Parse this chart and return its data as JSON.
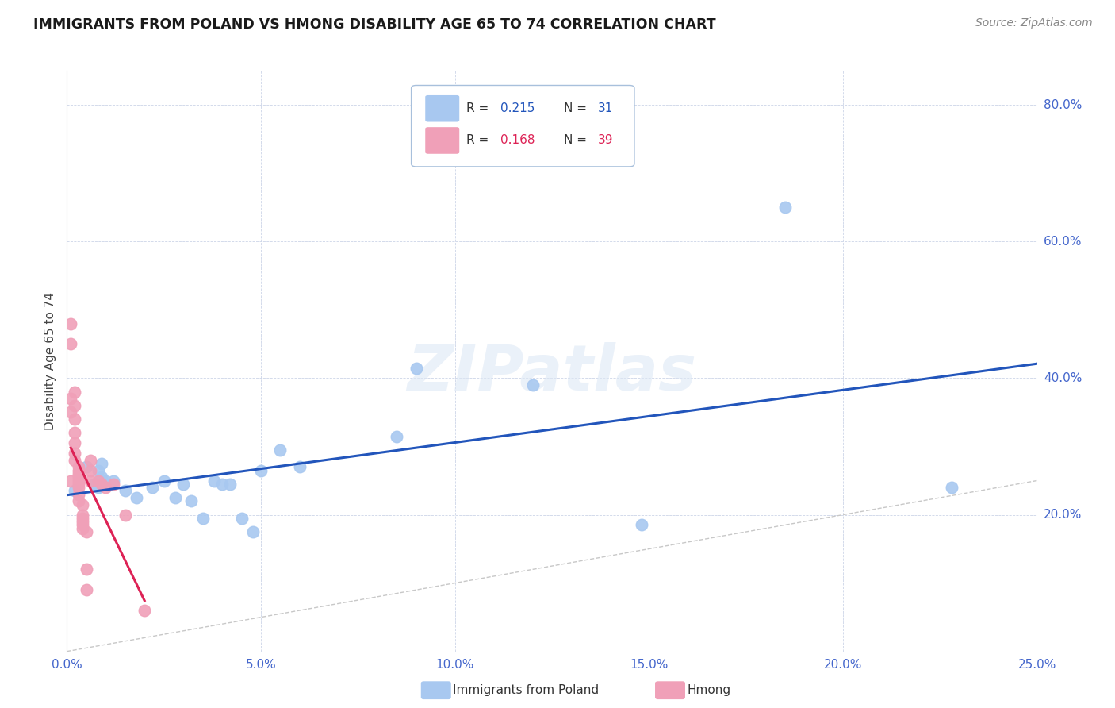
{
  "title": "IMMIGRANTS FROM POLAND VS HMONG DISABILITY AGE 65 TO 74 CORRELATION CHART",
  "source": "Source: ZipAtlas.com",
  "ylabel": "Disability Age 65 to 74",
  "xlim": [
    0.0,
    0.25
  ],
  "ylim": [
    0.0,
    0.85
  ],
  "xticks": [
    0.0,
    0.05,
    0.1,
    0.15,
    0.2,
    0.25
  ],
  "yticks": [
    0.0,
    0.2,
    0.4,
    0.6,
    0.8
  ],
  "xticklabels": [
    "0.0%",
    "5.0%",
    "10.0%",
    "15.0%",
    "20.0%",
    "25.0%"
  ],
  "yticklabels_right": [
    "",
    "20.0%",
    "40.0%",
    "60.0%",
    "80.0%"
  ],
  "poland_R": 0.215,
  "poland_N": 31,
  "hmong_R": 0.168,
  "hmong_N": 39,
  "poland_color": "#a8c8f0",
  "hmong_color": "#f0a0b8",
  "poland_line_color": "#2255bb",
  "hmong_line_color": "#dd2255",
  "diagonal_color": "#c8c8c8",
  "watermark": "ZIPatlas",
  "poland_x": [
    0.002,
    0.005,
    0.007,
    0.008,
    0.008,
    0.009,
    0.009,
    0.01,
    0.012,
    0.015,
    0.018,
    0.022,
    0.025,
    0.028,
    0.03,
    0.032,
    0.035,
    0.038,
    0.04,
    0.042,
    0.045,
    0.048,
    0.05,
    0.055,
    0.06,
    0.085,
    0.09,
    0.12,
    0.148,
    0.185,
    0.228
  ],
  "poland_y": [
    0.235,
    0.27,
    0.245,
    0.265,
    0.24,
    0.275,
    0.255,
    0.25,
    0.25,
    0.235,
    0.225,
    0.24,
    0.25,
    0.225,
    0.245,
    0.22,
    0.195,
    0.25,
    0.245,
    0.245,
    0.195,
    0.175,
    0.265,
    0.295,
    0.27,
    0.315,
    0.415,
    0.39,
    0.185,
    0.65,
    0.24
  ],
  "hmong_x": [
    0.001,
    0.001,
    0.001,
    0.001,
    0.001,
    0.002,
    0.002,
    0.002,
    0.002,
    0.002,
    0.002,
    0.002,
    0.003,
    0.003,
    0.003,
    0.003,
    0.003,
    0.003,
    0.003,
    0.003,
    0.003,
    0.004,
    0.004,
    0.004,
    0.004,
    0.004,
    0.004,
    0.005,
    0.005,
    0.005,
    0.006,
    0.006,
    0.006,
    0.008,
    0.009,
    0.01,
    0.012,
    0.015,
    0.02
  ],
  "hmong_y": [
    0.48,
    0.45,
    0.37,
    0.35,
    0.25,
    0.38,
    0.36,
    0.34,
    0.32,
    0.305,
    0.29,
    0.28,
    0.27,
    0.265,
    0.26,
    0.255,
    0.25,
    0.245,
    0.24,
    0.23,
    0.22,
    0.215,
    0.2,
    0.195,
    0.19,
    0.185,
    0.18,
    0.175,
    0.12,
    0.09,
    0.28,
    0.265,
    0.25,
    0.25,
    0.245,
    0.24,
    0.245,
    0.2,
    0.06
  ]
}
